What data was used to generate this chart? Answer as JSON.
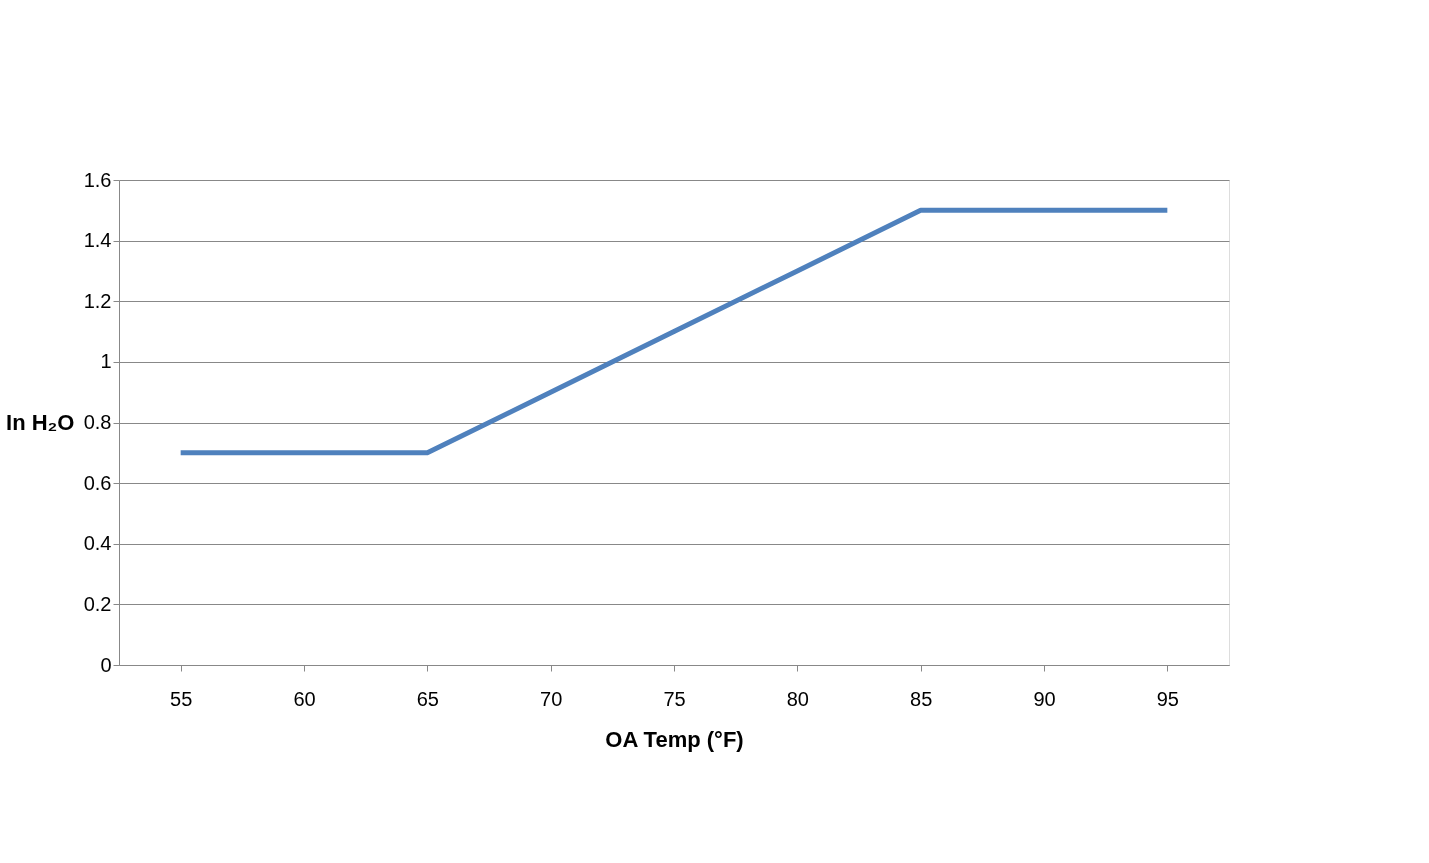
{
  "chart_data": {
    "type": "line",
    "categories": [
      "55",
      "60",
      "65",
      "70",
      "75",
      "80",
      "85",
      "90",
      "95"
    ],
    "series": [
      {
        "color": "#4f81bd",
        "values": [
          0.7,
          0.7,
          0.7,
          0.9,
          1.1,
          1.3,
          1.5,
          1.5,
          1.5
        ]
      }
    ],
    "xlabel": "OA Temp (°F)",
    "ylabel": "In H₂O",
    "ylim": [
      0,
      1.6
    ],
    "yticks": [
      0,
      0.2,
      0.4,
      0.6,
      0.8,
      1,
      1.2,
      1.4,
      1.6
    ],
    "grid": "y",
    "marker": "none",
    "line_style": "solid"
  }
}
